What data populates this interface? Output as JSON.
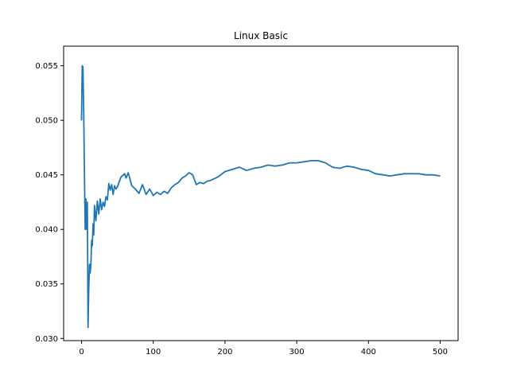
{
  "chart_data": {
    "type": "line",
    "title": "Linux Basic",
    "xlabel": "",
    "ylabel": "",
    "xlim": [
      -25,
      525
    ],
    "ylim": [
      0.0298,
      0.0568
    ],
    "xticks": [
      0,
      100,
      200,
      300,
      400,
      500
    ],
    "yticks": [
      0.03,
      0.035,
      0.04,
      0.045,
      0.05,
      0.055
    ],
    "xtick_labels": [
      "0",
      "100",
      "200",
      "300",
      "400",
      "500"
    ],
    "ytick_labels": [
      "0.030",
      "0.035",
      "0.040",
      "0.045",
      "0.050",
      "0.055"
    ],
    "grid": false,
    "line_color": "#1f77b4",
    "series": [
      {
        "x": [
          0,
          1,
          2,
          3,
          4,
          5,
          6,
          7,
          8,
          9,
          10,
          11,
          12,
          13,
          14,
          15,
          16,
          17,
          18,
          20,
          22,
          24,
          26,
          28,
          30,
          32,
          34,
          36,
          38,
          40,
          42,
          44,
          46,
          48,
          50,
          55,
          60,
          62,
          65,
          70,
          75,
          80,
          85,
          90,
          95,
          100,
          105,
          110,
          115,
          120,
          125,
          130,
          135,
          140,
          145,
          150,
          155,
          160,
          165,
          170,
          175,
          180,
          190,
          200,
          210,
          220,
          230,
          240,
          250,
          260,
          270,
          280,
          290,
          300,
          310,
          320,
          330,
          340,
          350,
          360,
          370,
          380,
          390,
          400,
          410,
          420,
          430,
          440,
          450,
          460,
          470,
          480,
          490,
          500
        ],
        "y": [
          0.05,
          0.055,
          0.0549,
          0.0505,
          0.045,
          0.04,
          0.0428,
          0.04,
          0.0425,
          0.031,
          0.0345,
          0.0368,
          0.036,
          0.0368,
          0.039,
          0.0385,
          0.0405,
          0.0395,
          0.0422,
          0.0408,
          0.0426,
          0.0414,
          0.0428,
          0.0418,
          0.0425,
          0.0421,
          0.043,
          0.0427,
          0.0442,
          0.0436,
          0.0441,
          0.0432,
          0.044,
          0.0437,
          0.0439,
          0.0448,
          0.0451,
          0.0447,
          0.0452,
          0.044,
          0.0437,
          0.0433,
          0.0441,
          0.0432,
          0.0437,
          0.0431,
          0.0434,
          0.0432,
          0.0435,
          0.0433,
          0.0438,
          0.0441,
          0.0443,
          0.0447,
          0.0449,
          0.0452,
          0.045,
          0.0441,
          0.0443,
          0.0442,
          0.0444,
          0.0445,
          0.0448,
          0.0453,
          0.0455,
          0.0457,
          0.0454,
          0.0456,
          0.0457,
          0.0459,
          0.0458,
          0.0459,
          0.0461,
          0.0461,
          0.0462,
          0.0463,
          0.0463,
          0.0461,
          0.0457,
          0.0456,
          0.0458,
          0.0457,
          0.0455,
          0.0454,
          0.0451,
          0.045,
          0.0449,
          0.045,
          0.0451,
          0.0451,
          0.0451,
          0.045,
          0.045,
          0.0449
        ]
      }
    ]
  }
}
